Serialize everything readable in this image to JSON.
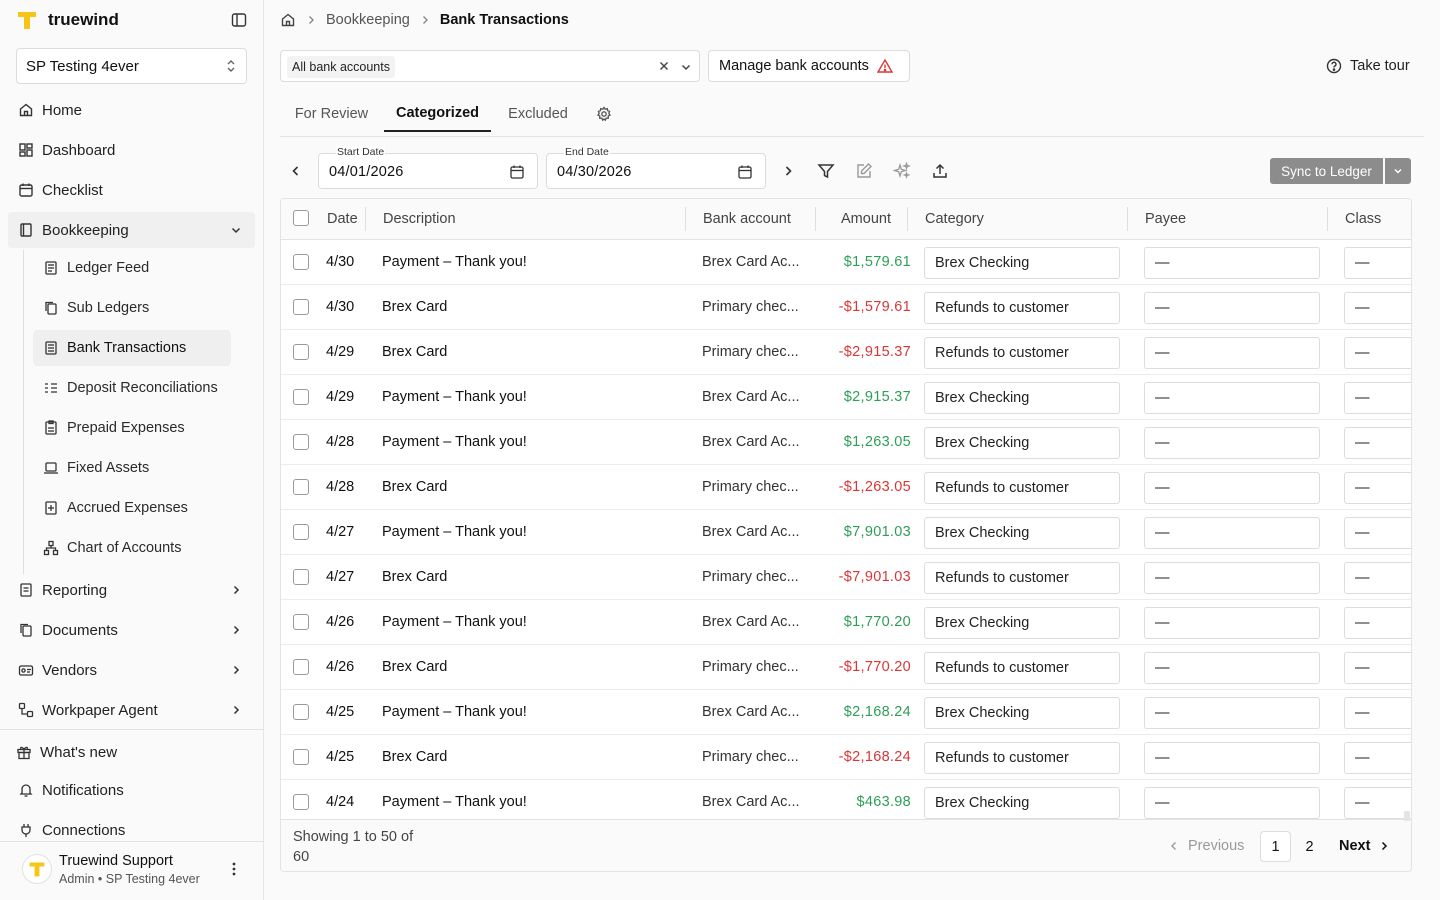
{
  "brand": {
    "name": "truewind",
    "accent": "#F5C518"
  },
  "org": {
    "selected": "SP Testing 4ever"
  },
  "nav": {
    "items": [
      {
        "label": "Home",
        "icon": "home-icon"
      },
      {
        "label": "Dashboard",
        "icon": "dashboard-icon"
      },
      {
        "label": "Checklist",
        "icon": "calendar-icon"
      },
      {
        "label": "Bookkeeping",
        "icon": "book-icon",
        "expanded": true
      },
      {
        "label": "Reporting",
        "icon": "report-icon"
      },
      {
        "label": "Documents",
        "icon": "documents-icon"
      },
      {
        "label": "Vendors",
        "icon": "vendors-icon"
      },
      {
        "label": "Workpaper Agent",
        "icon": "workflow-icon"
      }
    ],
    "bookkeeping_sub": [
      {
        "label": "Ledger Feed",
        "icon": "ledger-icon"
      },
      {
        "label": "Sub Ledgers",
        "icon": "copy-icon"
      },
      {
        "label": "Bank Transactions",
        "icon": "bank-transactions-icon",
        "active": true
      },
      {
        "label": "Deposit Reconciliations",
        "icon": "reconcile-icon"
      },
      {
        "label": "Prepaid Expenses",
        "icon": "prepaid-icon"
      },
      {
        "label": "Fixed Assets",
        "icon": "laptop-icon"
      },
      {
        "label": "Accrued Expenses",
        "icon": "accrued-icon"
      },
      {
        "label": "Chart of Accounts",
        "icon": "hierarchy-icon"
      }
    ],
    "bottom": [
      {
        "label": "What's new",
        "icon": "gift-icon"
      },
      {
        "label": "Notifications",
        "icon": "bell-icon"
      },
      {
        "label": "Connections",
        "icon": "plug-icon"
      }
    ]
  },
  "user": {
    "name": "Truewind Support",
    "role": "Admin • SP Testing 4ever"
  },
  "breadcrumb": {
    "items": [
      "Bookkeeping",
      "Bank Transactions"
    ]
  },
  "filters": {
    "account_chip": "All bank accounts",
    "manage_label": "Manage bank accounts",
    "tour_label": "Take tour"
  },
  "tabs": [
    "For Review",
    "Categorized",
    "Excluded"
  ],
  "active_tab": "Categorized",
  "dates": {
    "start_label": "Start Date",
    "start_value": "04/01/2026",
    "end_label": "End Date",
    "end_value": "04/30/2026"
  },
  "sync": {
    "label": "Sync to Ledger"
  },
  "table": {
    "columns": [
      "Date",
      "Description",
      "Bank account",
      "Amount",
      "Category",
      "Payee",
      "Class"
    ],
    "rows": [
      {
        "date": "4/30",
        "description": "Payment – Thank you!",
        "bank": "Brex Card Ac...",
        "amount": "$1,579.61",
        "sign": "pos",
        "category": "Brex Checking",
        "payee": "—",
        "class": "—"
      },
      {
        "date": "4/30",
        "description": "Brex Card",
        "bank": "Primary chec...",
        "amount": "-$1,579.61",
        "sign": "neg",
        "category": "Refunds to customer",
        "payee": "—",
        "class": "—"
      },
      {
        "date": "4/29",
        "description": "Brex Card",
        "bank": "Primary chec...",
        "amount": "-$2,915.37",
        "sign": "neg",
        "category": "Refunds to customer",
        "payee": "—",
        "class": "—"
      },
      {
        "date": "4/29",
        "description": "Payment – Thank you!",
        "bank": "Brex Card Ac...",
        "amount": "$2,915.37",
        "sign": "pos",
        "category": "Brex Checking",
        "payee": "—",
        "class": "—"
      },
      {
        "date": "4/28",
        "description": "Payment – Thank you!",
        "bank": "Brex Card Ac...",
        "amount": "$1,263.05",
        "sign": "pos",
        "category": "Brex Checking",
        "payee": "—",
        "class": "—"
      },
      {
        "date": "4/28",
        "description": "Brex Card",
        "bank": "Primary chec...",
        "amount": "-$1,263.05",
        "sign": "neg",
        "category": "Refunds to customer",
        "payee": "—",
        "class": "—"
      },
      {
        "date": "4/27",
        "description": "Payment – Thank you!",
        "bank": "Brex Card Ac...",
        "amount": "$7,901.03",
        "sign": "pos",
        "category": "Brex Checking",
        "payee": "—",
        "class": "—"
      },
      {
        "date": "4/27",
        "description": "Brex Card",
        "bank": "Primary chec...",
        "amount": "-$7,901.03",
        "sign": "neg",
        "category": "Refunds to customer",
        "payee": "—",
        "class": "—"
      },
      {
        "date": "4/26",
        "description": "Payment – Thank you!",
        "bank": "Brex Card Ac...",
        "amount": "$1,770.20",
        "sign": "pos",
        "category": "Brex Checking",
        "payee": "—",
        "class": "—"
      },
      {
        "date": "4/26",
        "description": "Brex Card",
        "bank": "Primary chec...",
        "amount": "-$1,770.20",
        "sign": "neg",
        "category": "Refunds to customer",
        "payee": "—",
        "class": "—"
      },
      {
        "date": "4/25",
        "description": "Payment – Thank you!",
        "bank": "Brex Card Ac...",
        "amount": "$2,168.24",
        "sign": "pos",
        "category": "Brex Checking",
        "payee": "—",
        "class": "—"
      },
      {
        "date": "4/25",
        "description": "Brex Card",
        "bank": "Primary chec...",
        "amount": "-$2,168.24",
        "sign": "neg",
        "category": "Refunds to customer",
        "payee": "—",
        "class": "—"
      },
      {
        "date": "4/24",
        "description": "Payment – Thank you!",
        "bank": "Brex Card Ac...",
        "amount": "$463.98",
        "sign": "pos",
        "category": "Brex Checking",
        "payee": "—",
        "class": "—"
      }
    ]
  },
  "pagination": {
    "showing": "Showing 1 to 50 of 60",
    "previous": "Previous",
    "pages": [
      "1",
      "2"
    ],
    "current": "1",
    "next": "Next"
  },
  "colors": {
    "positive": "#2e9e57",
    "negative": "#d93636",
    "sync_button": "#8c8c8c",
    "warning": "#d93636"
  }
}
